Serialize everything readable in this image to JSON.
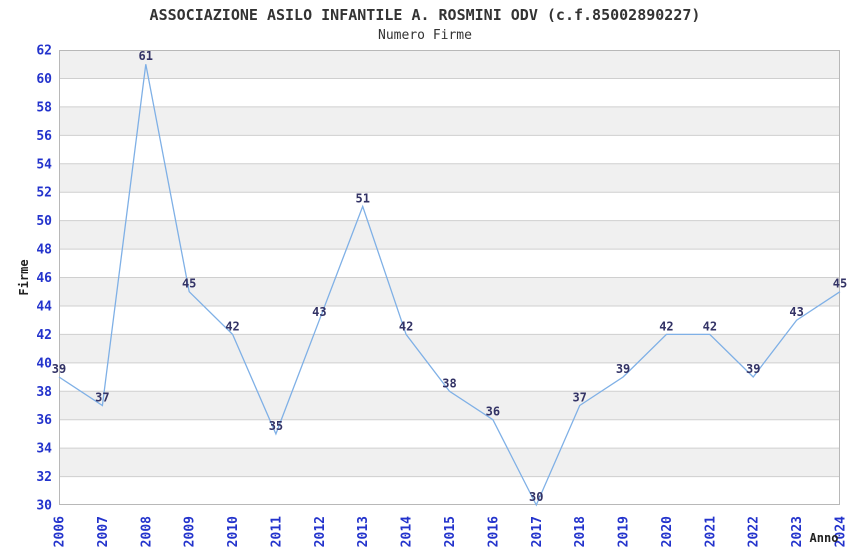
{
  "chart_data": {
    "type": "line",
    "title": "ASSOCIAZIONE ASILO INFANTILE A. ROSMINI ODV (c.f.85002890227)",
    "subtitle": "Numero Firme",
    "xlabel": "Anno",
    "ylabel": "Firme",
    "x": [
      2006,
      2007,
      2008,
      2009,
      2010,
      2011,
      2012,
      2013,
      2014,
      2015,
      2016,
      2017,
      2018,
      2019,
      2020,
      2021,
      2022,
      2023,
      2024
    ],
    "values": [
      39,
      37,
      61,
      45,
      42,
      35,
      43,
      51,
      42,
      38,
      36,
      30,
      37,
      39,
      42,
      42,
      39,
      43,
      45
    ],
    "ylim": [
      30,
      62
    ],
    "ytick_step": 2,
    "grid": "horizontal-stripes",
    "legend": "none",
    "markers": "none",
    "colors": {
      "line": "#7fb0e6",
      "point_label": "#333366",
      "tick_label": "#2333cc",
      "stripe": "#f0f0f0",
      "gridline": "#cfcfcf",
      "plot_border": "#b8b8b8",
      "title": "#333333",
      "axis_label": "#222222",
      "background": "#ffffff"
    }
  }
}
